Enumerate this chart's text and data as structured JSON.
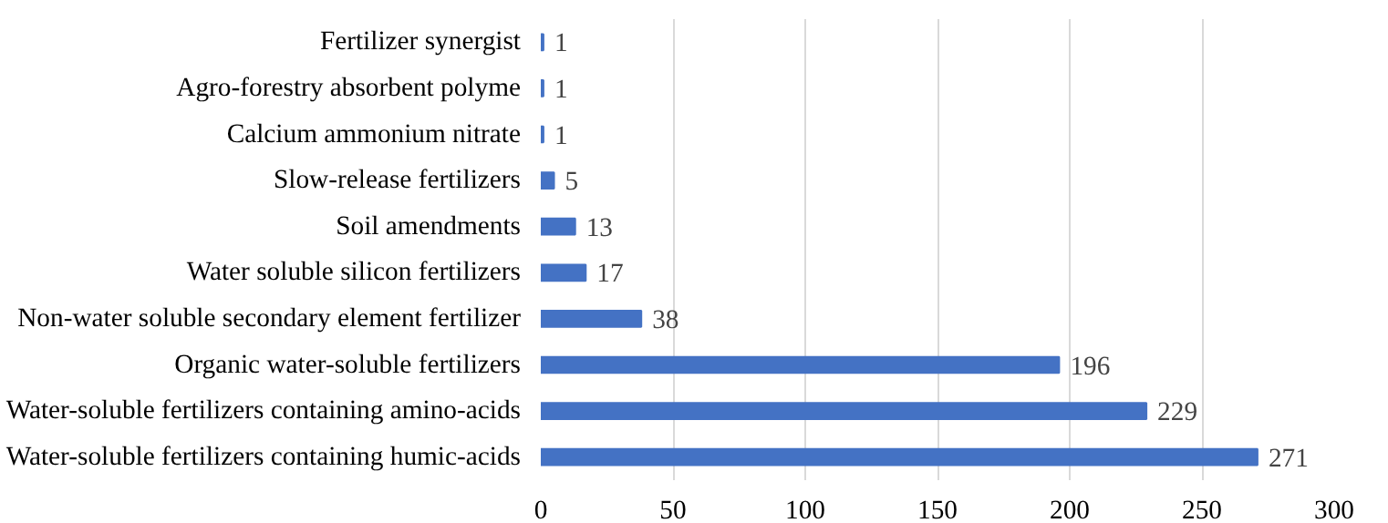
{
  "chart_data": {
    "type": "bar",
    "orientation": "horizontal",
    "categories": [
      "Fertilizer synergist",
      "Agro-forestry absorbent polyme",
      "Calcium ammonium nitrate",
      "Slow-release fertilizers",
      "Soil amendments",
      "Water soluble silicon fertilizers",
      "Non-water soluble secondary element fertilizer",
      "Organic water-soluble fertilizers",
      "Water-soluble fertilizers containing amino-acids",
      "Water-soluble fertilizers containing humic-acids"
    ],
    "values": [
      1,
      1,
      1,
      5,
      13,
      17,
      38,
      196,
      229,
      271
    ],
    "color": "#4472c4",
    "xlim": [
      0,
      300
    ],
    "xticks": [
      0,
      50,
      100,
      150,
      200,
      250,
      300
    ],
    "grid": "x",
    "data_labels": true
  }
}
